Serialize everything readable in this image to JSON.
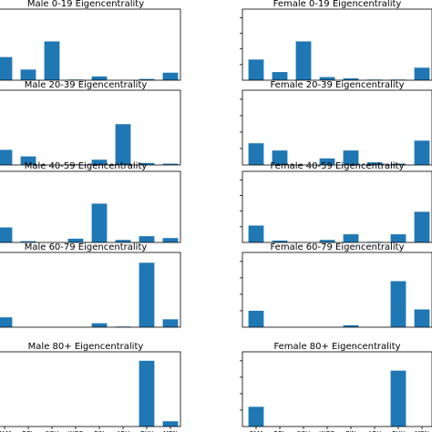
{
  "chart_data": {
    "type": "bar",
    "layout": "grid of small multiples, 5 rows x 2 columns",
    "bar_color": "#1f77b4",
    "categories": [
      "FAM",
      "REL",
      "SCH",
      "WOR",
      "FIN",
      "ABU",
      "PHY",
      "MEN"
    ],
    "x_tick_labels": [
      "FAM",
      "REL",
      "SCH",
      "WOR",
      "FIN",
      "ABU",
      "PHY",
      "MEN"
    ],
    "ylim": [
      0,
      1
    ],
    "panels": [
      {
        "title": "Male 0-19 Eigencentrality",
        "values": [
          0.37,
          0.17,
          0.62,
          0.01,
          0.06,
          0.0,
          0.02,
          0.12
        ]
      },
      {
        "title": "Female 0-19 Eigencentrality",
        "values": [
          0.33,
          0.13,
          0.62,
          0.05,
          0.03,
          0.01,
          0.01,
          0.2
        ]
      },
      {
        "title": "Male 20-39 Eigencentrality",
        "values": [
          0.23,
          0.13,
          0.0,
          0.01,
          0.08,
          0.62,
          0.03,
          0.02
        ]
      },
      {
        "title": "Female 20-39 Eigencentrality",
        "values": [
          0.33,
          0.22,
          0.0,
          0.1,
          0.22,
          0.04,
          0.02,
          0.37
        ]
      },
      {
        "title": "Male 40-59 Eigencentrality",
        "values": [
          0.24,
          0.02,
          0.0,
          0.06,
          0.62,
          0.04,
          0.1,
          0.07
        ]
      },
      {
        "title": "Female 40-59 Eigencentrality",
        "values": [
          0.27,
          0.03,
          0.0,
          0.04,
          0.13,
          0.01,
          0.13,
          0.49
        ]
      },
      {
        "title": "Male 60-79 Eigencentrality",
        "values": [
          0.15,
          0.0,
          0.0,
          0.0,
          0.06,
          0.01,
          0.98,
          0.12
        ]
      },
      {
        "title": "Female 60-79 Eigencentrality",
        "values": [
          0.25,
          0.0,
          0.0,
          0.0,
          0.03,
          0.0,
          0.7,
          0.27
        ]
      },
      {
        "title": "Male 80+ Eigencentrality",
        "values": [
          0.0,
          0.0,
          0.0,
          0.0,
          0.0,
          0.0,
          1.0,
          0.08
        ]
      },
      {
        "title": "Female 80+ Eigencentrality",
        "values": [
          0.3,
          0.0,
          0.0,
          0.0,
          0.0,
          0.0,
          0.85,
          0.0
        ]
      }
    ]
  }
}
